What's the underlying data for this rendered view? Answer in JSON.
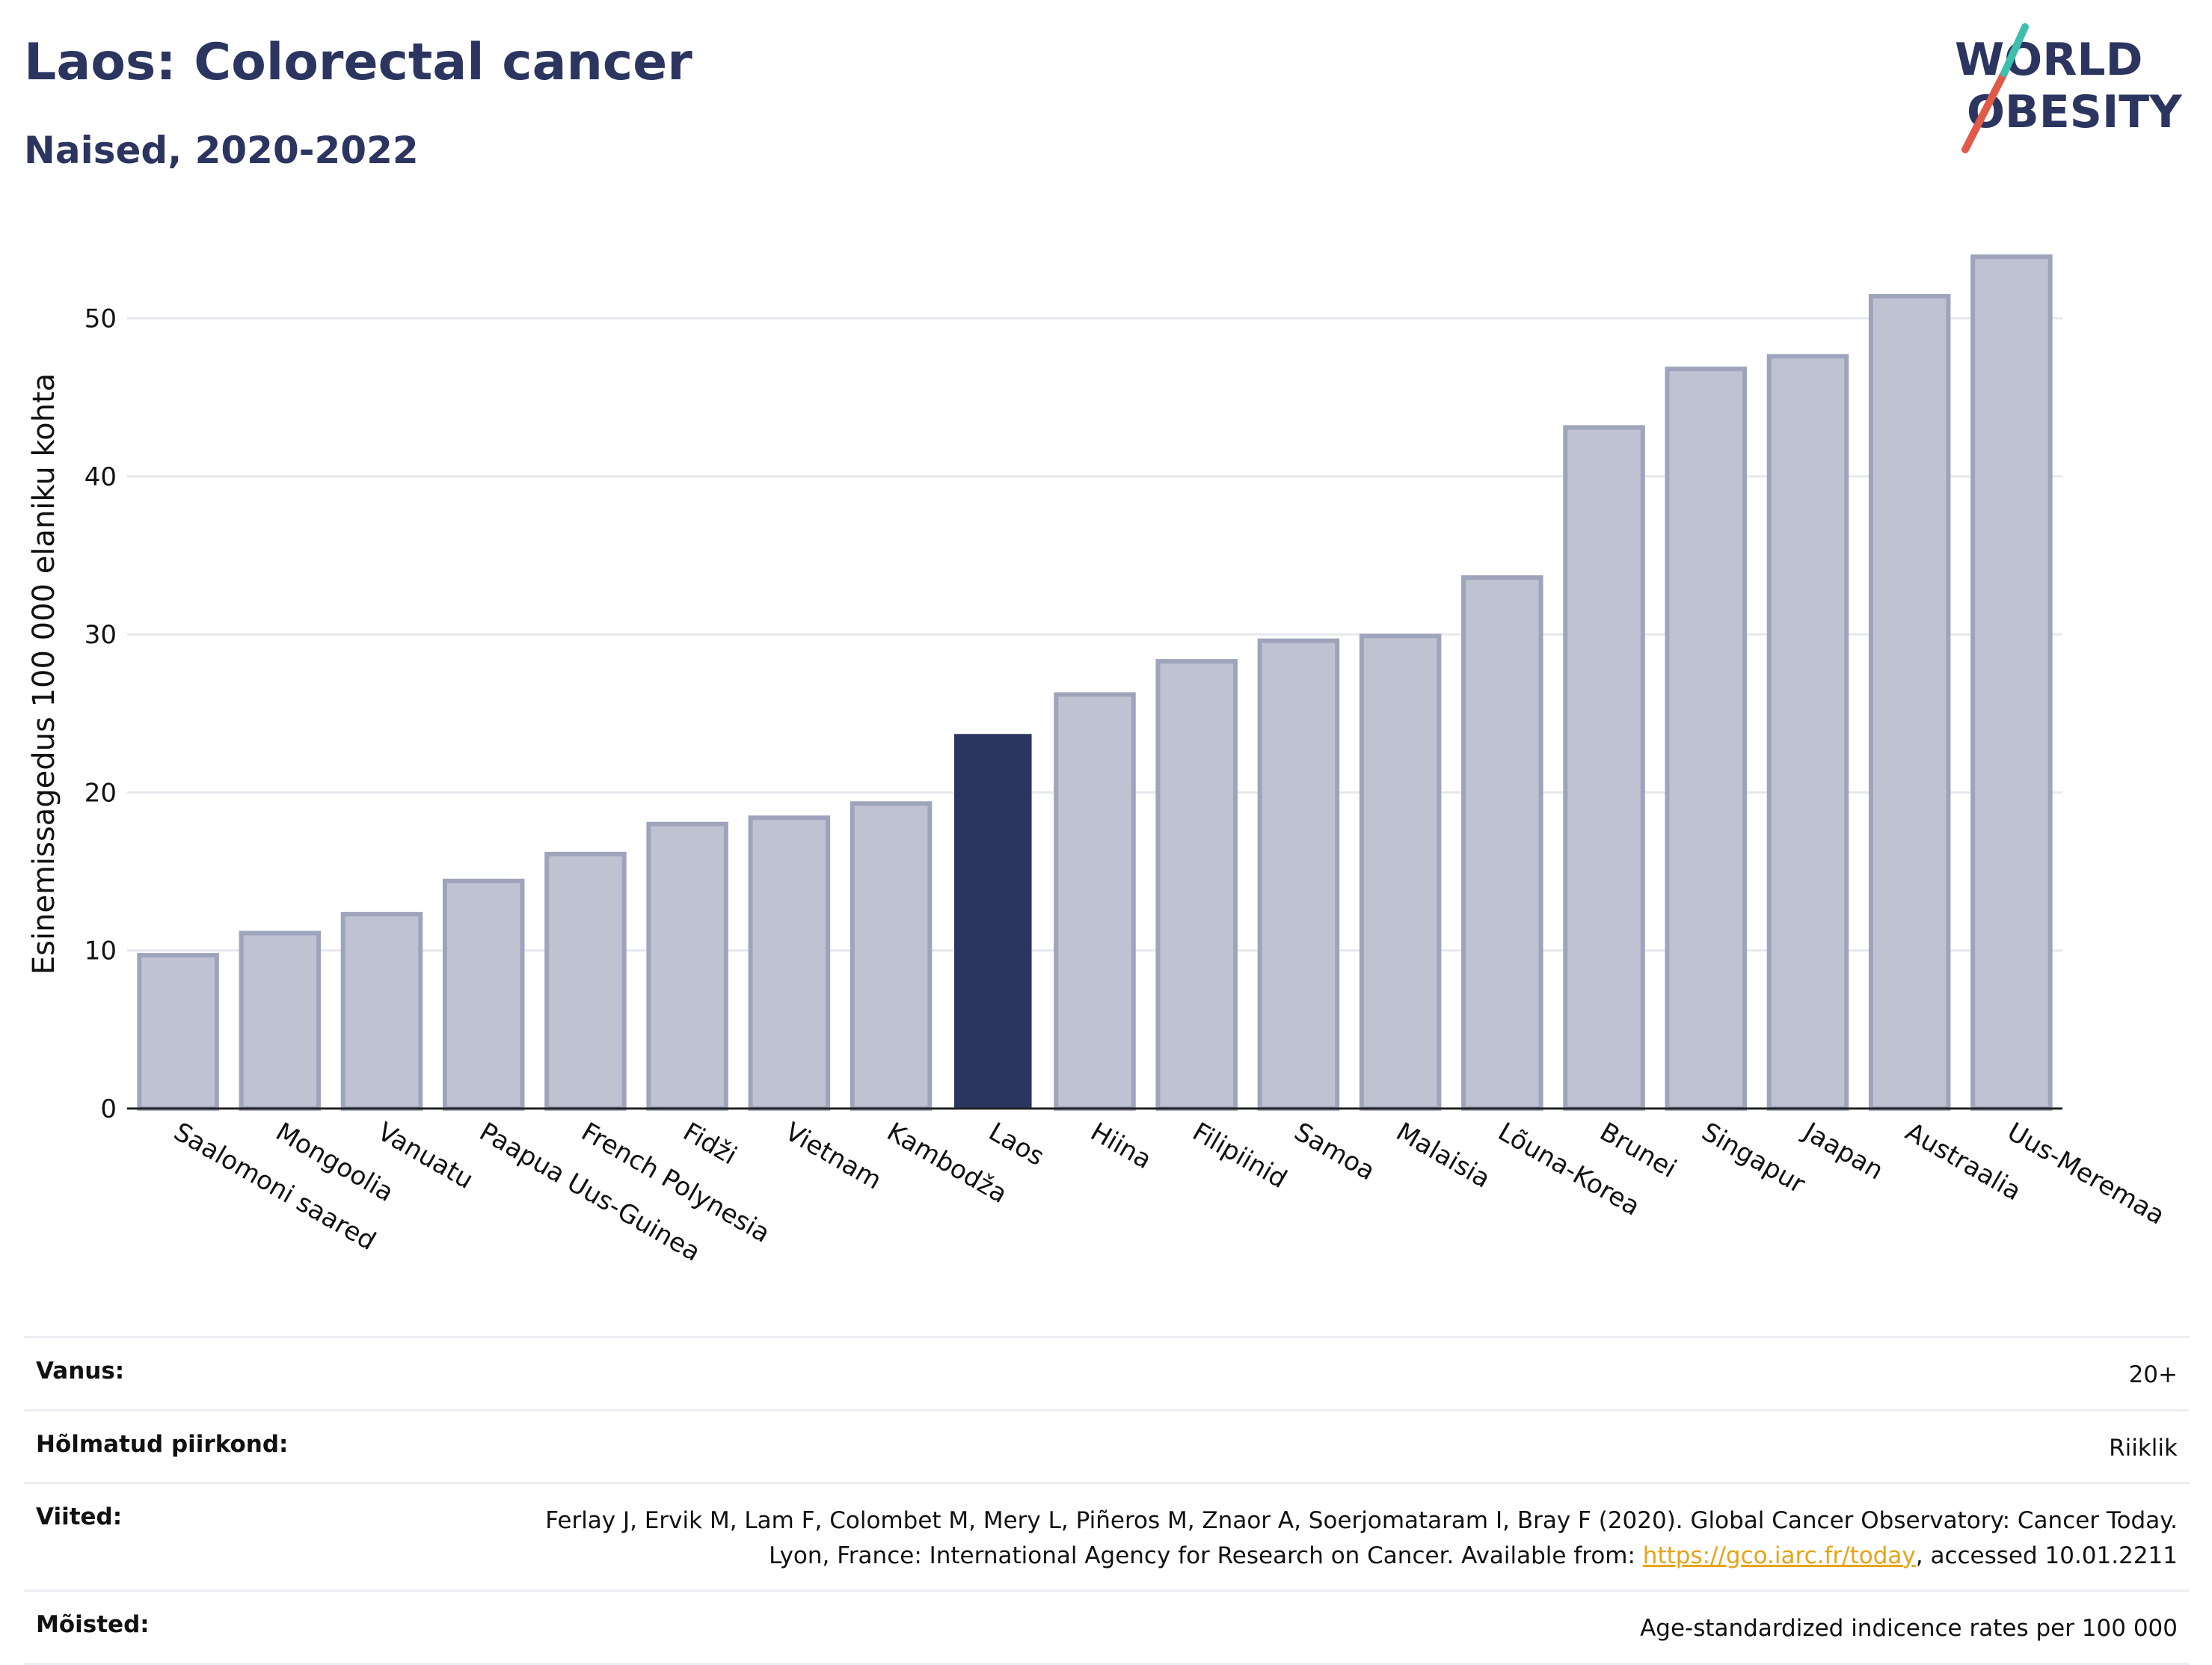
{
  "title": "Laos: Colorectal cancer",
  "subtitle": "Naised, 2020-2022",
  "logo": {
    "line1": "WORLD",
    "line2": "OBESITY",
    "accent_teal": "#3cbfae",
    "accent_red": "#e05a47",
    "text_color": "#2b3560"
  },
  "colors": {
    "bar": "#bfc3d1",
    "bar_stroke": "#9ea4bb",
    "highlight": "#2b3560",
    "grid": "#e6e8ee"
  },
  "chart_data": {
    "type": "bar",
    "title": "Laos: Colorectal cancer",
    "subtitle": "Naised, 2020-2022",
    "xlabel": "",
    "ylabel": "Esinemissagedus 100 000 elaniku kohta",
    "ylim": [
      0,
      55
    ],
    "yticks": [
      0,
      10,
      20,
      30,
      40,
      50
    ],
    "grid": true,
    "highlight": "Laos",
    "categories": [
      "Saalomoni saared",
      "Mongoolia",
      "Vanuatu",
      "Paapua Uus-Guinea",
      "French Polynesia",
      "Fidži",
      "Vietnam",
      "Kambodža",
      "Laos",
      "Hiina",
      "Filipiinid",
      "Samoa",
      "Malaisia",
      "Lõuna-Korea",
      "Brunei",
      "Singapur",
      "Jaapan",
      "Austraalia",
      "Uus-Meremaa"
    ],
    "values": [
      9.7,
      11.1,
      12.3,
      14.4,
      16.1,
      18.0,
      18.4,
      19.3,
      23.7,
      26.2,
      28.3,
      29.6,
      29.9,
      33.6,
      43.1,
      46.8,
      47.6,
      51.4,
      53.9
    ]
  },
  "info": [
    {
      "label": "Vanus:",
      "value": "20+"
    },
    {
      "label": "Hõlmatud piirkond:",
      "value": "Riiklik"
    },
    {
      "label": "Viited:",
      "value_before": "Ferlay J, Ervik M, Lam F, Colombet M, Mery L, Piñeros M, Znaor A, Soerjomataram I, Bray F (2020). Global Cancer Observatory: Cancer Today. Lyon, France: International Agency for Research on Cancer. Available from: ",
      "link": "https://gco.iarc.fr/today",
      "value_after": ", accessed 10.01.2211"
    },
    {
      "label": "Mõisted:",
      "value": "Age-standardized indicence rates per 100 000"
    }
  ]
}
